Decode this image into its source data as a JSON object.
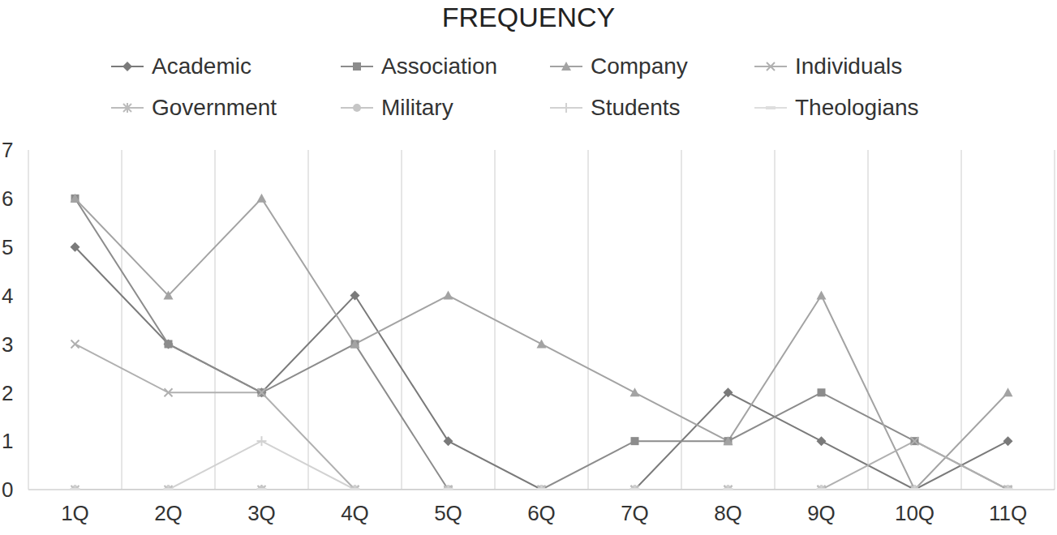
{
  "chart_data": {
    "type": "line",
    "title": "FREQUENCY",
    "categories": [
      "1Q",
      "2Q",
      "3Q",
      "4Q",
      "5Q",
      "6Q",
      "7Q",
      "8Q",
      "9Q",
      "10Q",
      "11Q"
    ],
    "series": [
      {
        "name": "Academic",
        "color": "#7a7a7a",
        "marker": "diamond",
        "values": [
          5,
          3,
          2,
          4,
          1,
          0,
          0,
          2,
          1,
          0,
          1
        ]
      },
      {
        "name": "Association",
        "color": "#8c8c8c",
        "marker": "square",
        "values": [
          6,
          3,
          2,
          3,
          0,
          0,
          1,
          1,
          2,
          1,
          0
        ]
      },
      {
        "name": "Company",
        "color": "#a3a3a3",
        "marker": "triangle",
        "values": [
          6,
          4,
          6,
          3,
          4,
          3,
          2,
          1,
          4,
          0,
          2
        ]
      },
      {
        "name": "Individuals",
        "color": "#b0b0b0",
        "marker": "x",
        "values": [
          3,
          2,
          2,
          0,
          0,
          0,
          0,
          0,
          0,
          1,
          0
        ]
      },
      {
        "name": "Government",
        "color": "#bcbcbc",
        "marker": "star",
        "values": [
          0,
          0,
          0,
          0,
          0,
          0,
          0,
          0,
          0,
          0,
          0
        ]
      },
      {
        "name": "Military",
        "color": "#c6c6c6",
        "marker": "circle",
        "values": [
          0,
          0,
          0,
          0,
          0,
          0,
          0,
          0,
          0,
          0,
          0
        ]
      },
      {
        "name": "Students",
        "color": "#d2d2d2",
        "marker": "plus",
        "values": [
          0,
          0,
          1,
          0,
          0,
          0,
          0,
          0,
          0,
          0,
          0
        ]
      },
      {
        "name": "Theologians",
        "color": "#dedede",
        "marker": "dash",
        "values": [
          0,
          0,
          0,
          0,
          0,
          0,
          0,
          0,
          0,
          0,
          0
        ]
      }
    ],
    "ylim": [
      0,
      7
    ],
    "yticks": [
      0,
      1,
      2,
      3,
      4,
      5,
      6,
      7
    ],
    "grid": true,
    "legend": "top"
  }
}
